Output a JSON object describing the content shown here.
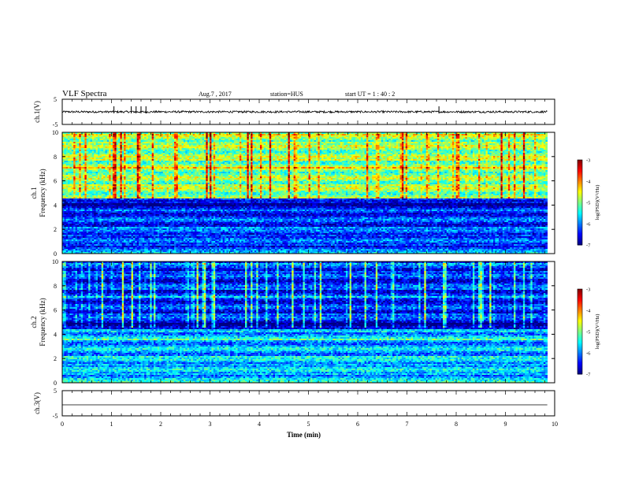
{
  "header": {
    "title": "VLF Spectra",
    "date": "Aug.7  , 2017",
    "station": "station=HUS",
    "start": "start  UT  =   1 : 40 : 2"
  },
  "chart_data": [
    {
      "type": "line",
      "title": "",
      "ylabel": "ch.1(V)",
      "ylim": [
        -5,
        5
      ],
      "yticks": [
        "5",
        "-5"
      ],
      "description_series": [
        {
          "name": "ch.1 waveform",
          "baseline": 0,
          "noise_amplitude": 0.4,
          "spikes_at_min": [
            1.05,
            1.4,
            1.5,
            1.6,
            1.7,
            7.65
          ]
        }
      ],
      "xlim": [
        0,
        10
      ]
    },
    {
      "type": "heatmap",
      "ylabel": "ch.1\nFrequency (kHz)",
      "ylim": [
        0,
        10
      ],
      "yticks": [
        "0",
        "2",
        "4",
        "6",
        "8",
        "10"
      ],
      "xlim": [
        0,
        9.85
      ],
      "colorbar": {
        "label": "log(PSD)(V²/Hz)",
        "range": [
          -7,
          -3
        ],
        "ticks": [
          "-3",
          "-4",
          "-5",
          "-6",
          "-7"
        ]
      },
      "bands_khz": [
        {
          "from": 0,
          "to": 0.5,
          "level": -6.2
        },
        {
          "from": 0.5,
          "to": 3.5,
          "level": -6.3
        },
        {
          "from": 3.5,
          "to": 4.6,
          "level": -6.7
        },
        {
          "from": 4.6,
          "to": 10,
          "level": -5.0
        }
      ]
    },
    {
      "type": "heatmap",
      "ylabel": "ch.2\nFrequency (kHz)",
      "ylim": [
        0,
        10
      ],
      "yticks": [
        "0",
        "2",
        "4",
        "6",
        "8",
        "10"
      ],
      "xlim": [
        0,
        9.85
      ],
      "colorbar": {
        "label": "log(PSD)(V²/Hz)",
        "range": [
          -7,
          -3
        ],
        "ticks": [
          "-3",
          "-4",
          "-5",
          "-6",
          "-7"
        ]
      },
      "bands_khz": [
        {
          "from": 0,
          "to": 4.4,
          "level": -5.8
        },
        {
          "from": 4.4,
          "to": 5.0,
          "level": -6.9
        },
        {
          "from": 5.0,
          "to": 10,
          "level": -6.4
        }
      ]
    },
    {
      "type": "line",
      "ylabel": "ch.3(V)",
      "ylim": [
        -5,
        5
      ],
      "yticks": [
        "5",
        "-5"
      ],
      "description_series": [
        {
          "name": "ch.3 waveform",
          "constant": 0
        }
      ],
      "xlim": [
        0,
        10
      ]
    }
  ],
  "xaxis": {
    "label": "Time  (min)",
    "range": [
      0,
      10
    ],
    "ticks": [
      "0",
      "1",
      "2",
      "3",
      "4",
      "5",
      "6",
      "7",
      "8",
      "9",
      "10"
    ]
  }
}
